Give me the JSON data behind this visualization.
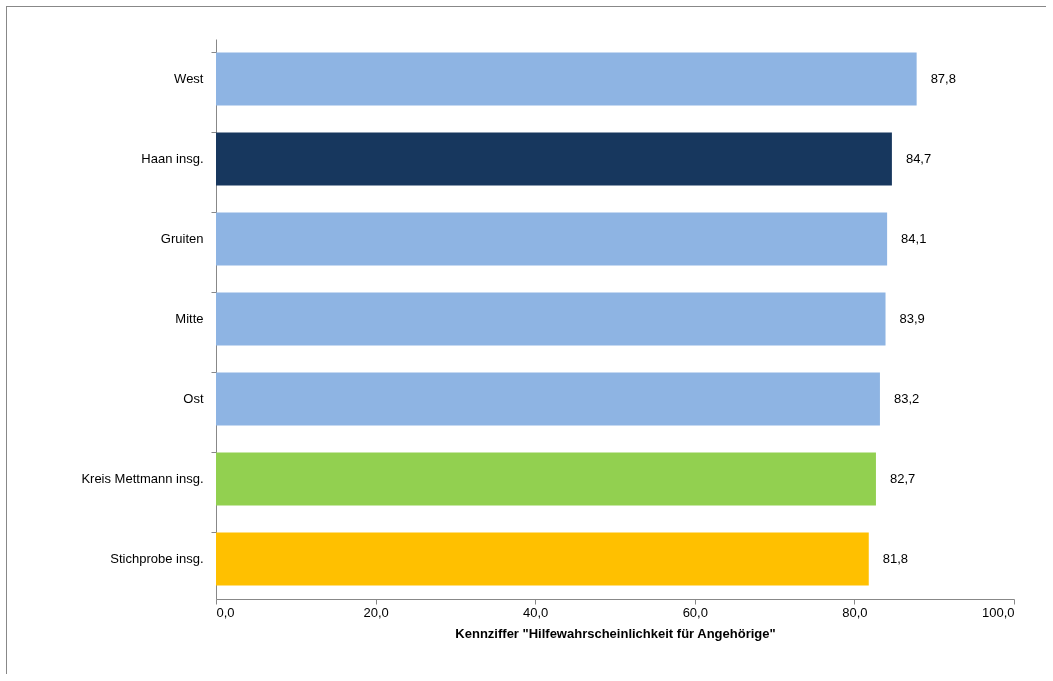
{
  "chart_data": {
    "type": "bar",
    "orientation": "horizontal",
    "xlabel": "Kennziffer \"Hilfewahrscheinlichkeit für Angehörige\"",
    "categories": [
      "West",
      "Haan insg.",
      "Gruiten",
      "Mitte",
      "Ost",
      "Kreis Mettmann insg.",
      "Stichprobe insg."
    ],
    "values": [
      87.8,
      84.7,
      84.1,
      83.9,
      83.2,
      82.7,
      81.8
    ],
    "colors": [
      "#8eb4e3",
      "#17375e",
      "#8eb4e3",
      "#8eb4e3",
      "#8eb4e3",
      "#92d050",
      "#ffc000"
    ],
    "value_labels": [
      "87,8",
      "84,7",
      "84,1",
      "83,9",
      "83,2",
      "82,7",
      "81,8"
    ],
    "xlim": [
      0,
      100
    ],
    "xticks": [
      {
        "value": 0,
        "label": "0,0"
      },
      {
        "value": 20,
        "label": "20,0"
      },
      {
        "value": 40,
        "label": "40,0"
      },
      {
        "value": 60,
        "label": "60,0"
      },
      {
        "value": 80,
        "label": "80,0"
      },
      {
        "value": 100,
        "label": "100,0"
      }
    ]
  }
}
